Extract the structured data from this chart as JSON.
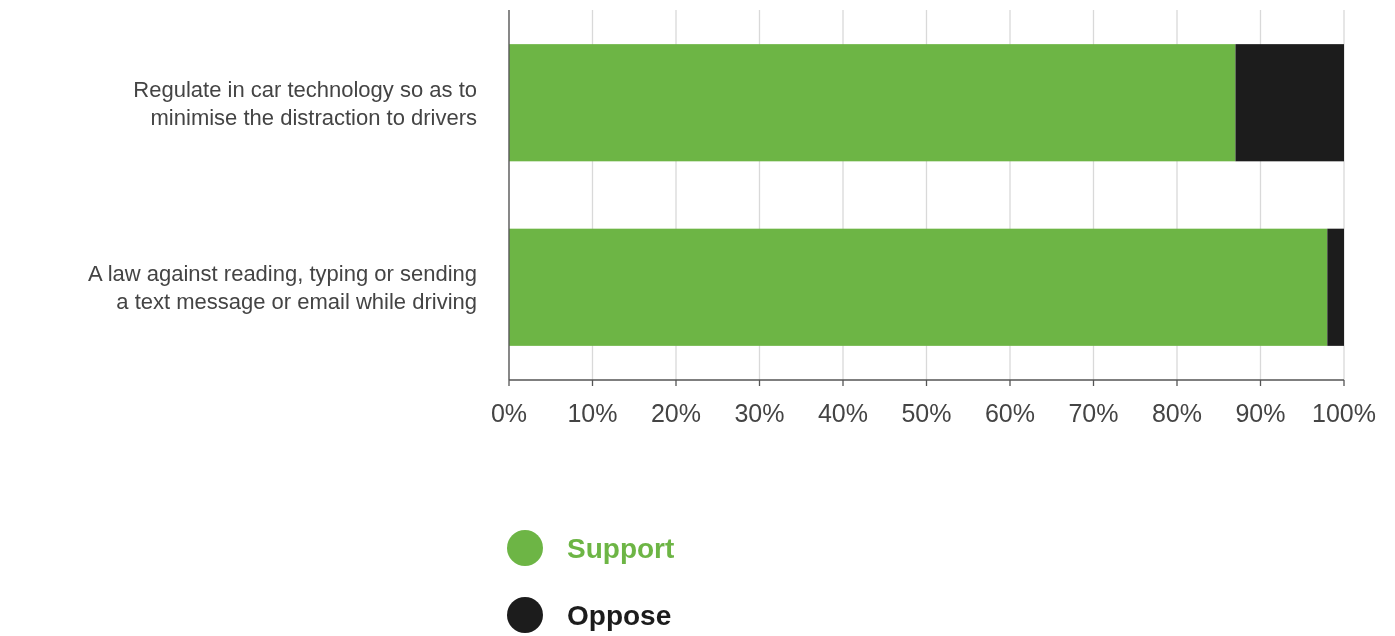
{
  "chart_data": {
    "type": "bar",
    "orientation": "horizontal",
    "stacked": true,
    "categories": [
      "Regulate in car technology so as to minimise the distraction to drivers",
      "A law against reading, typing or sending a text message or email while driving"
    ],
    "series": [
      {
        "name": "Support",
        "color": "#6db545",
        "values": [
          87,
          98
        ]
      },
      {
        "name": "Oppose",
        "color": "#1c1c1c",
        "values": [
          13,
          2
        ]
      }
    ],
    "xlim": [
      0,
      100
    ],
    "xticks": [
      {
        "value": 0,
        "label": "0%"
      },
      {
        "value": 10,
        "label": "10%"
      },
      {
        "value": 20,
        "label": "20%"
      },
      {
        "value": 30,
        "label": "30%"
      },
      {
        "value": 40,
        "label": "40%"
      },
      {
        "value": 50,
        "label": "50%"
      },
      {
        "value": 60,
        "label": "60%"
      },
      {
        "value": 70,
        "label": "70%"
      },
      {
        "value": 80,
        "label": "80%"
      },
      {
        "value": 90,
        "label": "90%"
      },
      {
        "value": 100,
        "label": "100%"
      }
    ],
    "grid": "x",
    "legend": "bottom"
  }
}
